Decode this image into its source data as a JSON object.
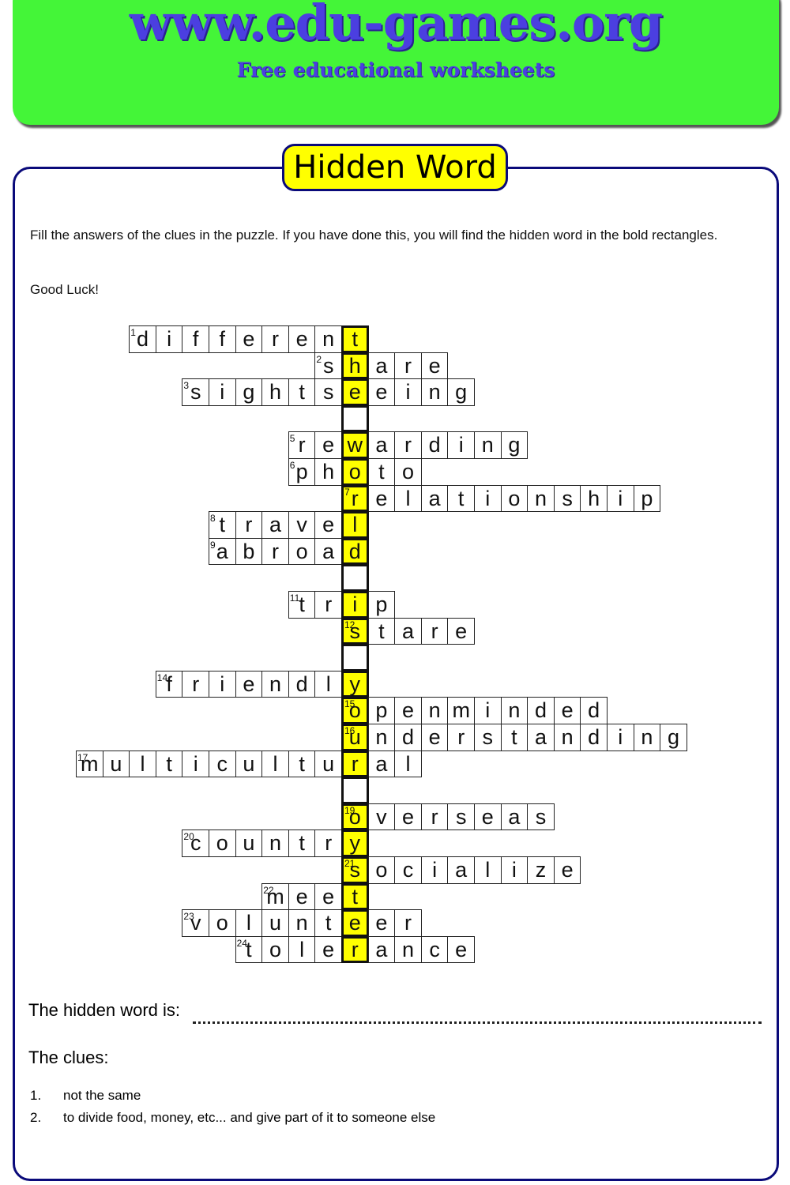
{
  "header": {
    "site": "www.edu-games.org",
    "tagline": "Free educational worksheets",
    "brand_color": "#44f538",
    "text_color": "#4b3fe0"
  },
  "title": "Hidden Word",
  "instructions": "Fill the answers of the clues in the puzzle. If you have done this, you will find the hidden word in the bold rectangles.",
  "good_luck": "Good Luck!",
  "puzzle": {
    "highlight_color": "#ffff00",
    "rows": [
      {
        "num": "1",
        "word": "different",
        "hidden_index": 8
      },
      {
        "num": "2",
        "word": "share",
        "hidden_index": 1
      },
      {
        "num": "3",
        "word": "sightseeing",
        "hidden_index": 6
      },
      {
        "num": "",
        "word": "",
        "hidden_index": 0
      },
      {
        "num": "5",
        "word": "rewarding",
        "hidden_index": 2
      },
      {
        "num": "6",
        "word": "photo",
        "hidden_index": 2
      },
      {
        "num": "7",
        "word": "relationship",
        "hidden_index": 0
      },
      {
        "num": "8",
        "word": "travel",
        "hidden_index": 5
      },
      {
        "num": "9",
        "word": "abroad",
        "hidden_index": 5
      },
      {
        "num": "",
        "word": "",
        "hidden_index": 0
      },
      {
        "num": "11",
        "word": "trip",
        "hidden_index": 2
      },
      {
        "num": "12",
        "word": "stare",
        "hidden_index": 0
      },
      {
        "num": "",
        "word": "",
        "hidden_index": 0
      },
      {
        "num": "14",
        "word": "friendly",
        "hidden_index": 7
      },
      {
        "num": "15",
        "word": "openminded",
        "hidden_index": 0
      },
      {
        "num": "16",
        "word": "understanding",
        "hidden_index": 0
      },
      {
        "num": "17",
        "word": "multicultural",
        "hidden_index": 10
      },
      {
        "num": "",
        "word": "",
        "hidden_index": 0
      },
      {
        "num": "19",
        "word": "overseas",
        "hidden_index": 0
      },
      {
        "num": "20",
        "word": "country",
        "hidden_index": 6
      },
      {
        "num": "21",
        "word": "socialize",
        "hidden_index": 0
      },
      {
        "num": "22",
        "word": "meet",
        "hidden_index": 3
      },
      {
        "num": "23",
        "word": "volunteer",
        "hidden_index": 6
      },
      {
        "num": "24",
        "word": "tolerance",
        "hidden_index": 4
      }
    ]
  },
  "hidden_word_label": "The hidden word is:",
  "clues_label": "The clues:",
  "clues": [
    {
      "num": "1.",
      "text": "not the same"
    },
    {
      "num": "2.",
      "text": "to divide food, money, etc... and give part of it to someone else"
    }
  ]
}
